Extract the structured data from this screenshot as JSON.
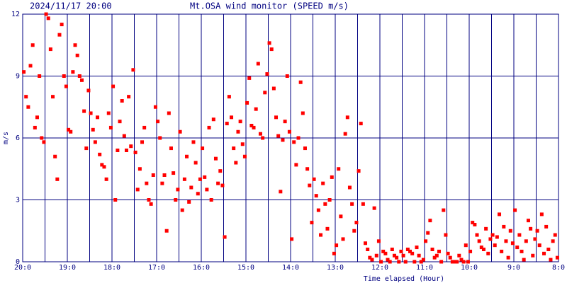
{
  "chart_data": {
    "type": "scatter",
    "title": "2024/11/17 20:00",
    "subtitle": "Mt.OSA wind monitor (SPEED m/s)",
    "x_label": "Time elapsed (Hour)",
    "y_label": "m/s",
    "xlim": [
      0,
      12
    ],
    "ylim": [
      0,
      12
    ],
    "xticks": [
      {
        "value": 0,
        "label": "20:0"
      },
      {
        "value": 1,
        "label": "19:0"
      },
      {
        "value": 2,
        "label": "18:0"
      },
      {
        "value": 3,
        "label": "17:0"
      },
      {
        "value": 4,
        "label": "16:0"
      },
      {
        "value": 5,
        "label": "15:0"
      },
      {
        "value": 6,
        "label": "14:0"
      },
      {
        "value": 7,
        "label": "13:0"
      },
      {
        "value": 8,
        "label": "12:0"
      },
      {
        "value": 9,
        "label": "11:0"
      },
      {
        "value": 10,
        "label": "10:0"
      },
      {
        "value": 11,
        "label": "9:0"
      },
      {
        "value": 12,
        "label": "8:0"
      }
    ],
    "xminor": [
      0.5,
      1.5,
      2.5,
      3.5,
      4.5,
      5.5,
      6.5,
      7.5,
      8.5,
      9.5,
      10.5,
      11.5
    ],
    "yticks": [
      0,
      3,
      6,
      9,
      12
    ],
    "grid": true,
    "grid_color": "#000080",
    "series": [
      {
        "name": "SPEED",
        "color": "#ff0000",
        "x": [
          0.025,
          0.075,
          0.125,
          0.175,
          0.225,
          0.275,
          0.325,
          0.375,
          0.425,
          0.475,
          0.525,
          0.575,
          0.625,
          0.675,
          0.725,
          0.775,
          0.825,
          0.875,
          0.925,
          0.975,
          1.025,
          1.075,
          1.125,
          1.175,
          1.225,
          1.275,
          1.325,
          1.375,
          1.425,
          1.475,
          1.525,
          1.575,
          1.625,
          1.675,
          1.725,
          1.775,
          1.825,
          1.875,
          1.925,
          1.975,
          2.025,
          2.075,
          2.125,
          2.175,
          2.225,
          2.275,
          2.325,
          2.375,
          2.425,
          2.475,
          2.525,
          2.575,
          2.625,
          2.675,
          2.725,
          2.775,
          2.825,
          2.875,
          2.925,
          2.975,
          3.025,
          3.075,
          3.125,
          3.175,
          3.225,
          3.275,
          3.325,
          3.375,
          3.425,
          3.475,
          3.525,
          3.575,
          3.625,
          3.675,
          3.725,
          3.775,
          3.825,
          3.875,
          3.925,
          3.975,
          4.025,
          4.075,
          4.125,
          4.175,
          4.225,
          4.275,
          4.325,
          4.375,
          4.425,
          4.475,
          4.525,
          4.575,
          4.625,
          4.675,
          4.725,
          4.775,
          4.825,
          4.875,
          4.925,
          4.975,
          5.025,
          5.075,
          5.125,
          5.175,
          5.225,
          5.275,
          5.325,
          5.375,
          5.425,
          5.475,
          5.525,
          5.575,
          5.625,
          5.675,
          5.725,
          5.775,
          5.825,
          5.875,
          5.925,
          5.975,
          6.025,
          6.075,
          6.125,
          6.175,
          6.225,
          6.275,
          6.325,
          6.375,
          6.425,
          6.475,
          6.525,
          6.575,
          6.625,
          6.675,
          6.725,
          6.775,
          6.825,
          6.875,
          6.925,
          6.975,
          7.025,
          7.075,
          7.125,
          7.175,
          7.225,
          7.275,
          7.325,
          7.375,
          7.425,
          7.475,
          7.525,
          7.575,
          7.625,
          7.675,
          7.725,
          7.775,
          7.825,
          7.875,
          7.925,
          7.975,
          8.025,
          8.075,
          8.125,
          8.175,
          8.225,
          8.275,
          8.325,
          8.375,
          8.425,
          8.475,
          8.525,
          8.575,
          8.625,
          8.675,
          8.725,
          8.775,
          8.825,
          8.875,
          8.925,
          8.975,
          9.025,
          9.075,
          9.125,
          9.175,
          9.225,
          9.275,
          9.325,
          9.375,
          9.425,
          9.475,
          9.525,
          9.575,
          9.625,
          9.675,
          9.725,
          9.775,
          9.825,
          9.875,
          9.925,
          9.975,
          10.025,
          10.075,
          10.125,
          10.175,
          10.225,
          10.275,
          10.325,
          10.375,
          10.425,
          10.475,
          10.525,
          10.575,
          10.625,
          10.675,
          10.725,
          10.775,
          10.825,
          10.875,
          10.925,
          10.975,
          11.025,
          11.075,
          11.125,
          11.175,
          11.225,
          11.275,
          11.325,
          11.375,
          11.425,
          11.475,
          11.525,
          11.575,
          11.625,
          11.675,
          11.725,
          11.775,
          11.825,
          11.875,
          11.925,
          11.975
        ],
        "values": [
          9.2,
          8,
          7.5,
          9.5,
          10.5,
          6.5,
          7,
          9,
          6,
          5.8,
          12,
          11.8,
          10.3,
          8,
          5.1,
          4,
          11,
          11.5,
          9,
          8.5,
          6.4,
          6.3,
          9.2,
          10.5,
          10,
          9,
          8.8,
          7.3,
          5.5,
          8.3,
          7.2,
          6.4,
          5.8,
          7,
          5.2,
          4.7,
          4.6,
          4,
          7.2,
          6.5,
          8.5,
          3,
          5.4,
          6.8,
          7.8,
          6.1,
          5.4,
          8,
          5.6,
          9.3,
          5.3,
          3.5,
          4.5,
          5.8,
          6.5,
          3.8,
          3,
          2.8,
          4.2,
          7.5,
          6.8,
          6,
          3.8,
          4.2,
          1.5,
          7.2,
          5.5,
          4.3,
          3,
          3.5,
          6.3,
          2.5,
          4,
          5.1,
          2.9,
          3.6,
          5.8,
          4.8,
          3.3,
          4,
          5.5,
          4.1,
          3.5,
          6.5,
          3,
          6.9,
          5,
          3.8,
          4.4,
          3.7,
          1.2,
          6.7,
          8,
          7,
          5.5,
          4.8,
          6.3,
          6.8,
          5.7,
          5.1,
          7.7,
          8.9,
          6.6,
          6.5,
          7.4,
          9.6,
          6.2,
          6,
          8.2,
          9.1,
          10.6,
          10.3,
          8.4,
          7,
          6.1,
          3.4,
          5.9,
          6.8,
          9,
          6.3,
          1.1,
          5.8,
          4.7,
          6,
          8.7,
          7.2,
          5.5,
          4.5,
          3.7,
          1.9,
          4,
          3.2,
          2.5,
          1.3,
          3.8,
          2.8,
          1.6,
          3,
          4.1,
          0.4,
          0.8,
          4.5,
          2.2,
          1.1,
          6.2,
          7,
          3.6,
          2.8,
          1.5,
          1.9,
          4.4,
          6.7,
          2.8,
          0.9,
          0.6,
          0.2,
          0.1,
          2.6,
          0.3,
          1,
          0,
          0.5,
          0.4,
          0.1,
          0,
          0.6,
          0.3,
          0.2,
          0,
          0.5,
          0.3,
          0,
          0.6,
          0.5,
          0.4,
          0,
          0.7,
          0.3,
          0,
          0.1,
          1,
          1.4,
          2,
          0.6,
          0.2,
          0.3,
          0.5,
          0,
          2.5,
          1.3,
          0.4,
          0.2,
          0,
          0,
          0,
          0.3,
          0.1,
          0,
          0.8,
          0,
          0.5,
          1.9,
          1.8,
          1.3,
          1,
          0.7,
          0.6,
          1.6,
          0.4,
          1.1,
          1.3,
          0.8,
          1.2,
          2.3,
          0.5,
          1.7,
          1,
          0.2,
          1.5,
          0.9,
          2.5,
          0.7,
          1.3,
          0.5,
          0.1,
          1,
          2,
          1.6,
          0.3,
          1.1,
          1.5,
          0.8,
          2.3,
          0.4,
          1.7,
          0.6,
          0.1,
          1,
          1.3,
          0.2
        ]
      }
    ]
  }
}
